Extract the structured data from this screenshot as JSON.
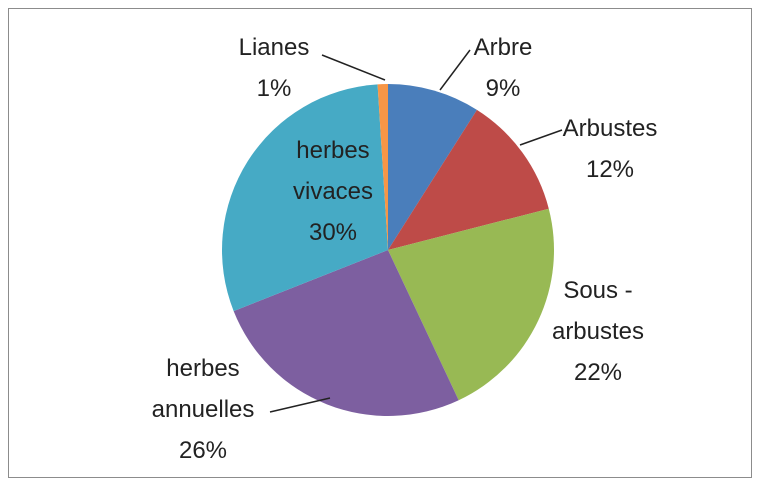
{
  "chart_data": {
    "type": "pie",
    "categories": [
      "Arbre",
      "Arbustes",
      "Sous - arbustes",
      "herbes annuelles",
      "herbes vivaces",
      "Lianes"
    ],
    "values": [
      9,
      12,
      22,
      26,
      30,
      1
    ],
    "value_labels": [
      "9%",
      "12%",
      "22%",
      "26%",
      "30%",
      "1%"
    ],
    "colors": [
      "#4a7ebb",
      "#be4b48",
      "#98b954",
      "#7d5fa0",
      "#46aac5",
      "#f79646"
    ]
  }
}
